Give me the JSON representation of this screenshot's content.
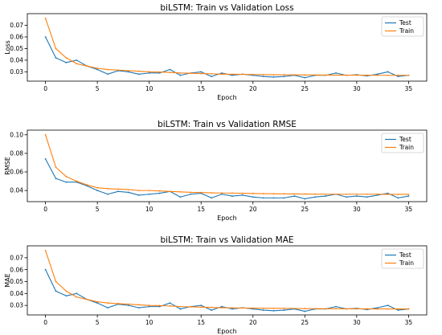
{
  "chart_data": [
    {
      "type": "line",
      "title": "biLSTM: Train vs Validation Loss",
      "xlabel": "Epoch",
      "ylabel": "Loss",
      "xlim": [
        -1.75,
        36.75
      ],
      "ylim": [
        0.022,
        0.08
      ],
      "xticks": [
        0,
        5,
        10,
        15,
        20,
        25,
        30,
        35
      ],
      "yticks": [
        0.03,
        0.04,
        0.05,
        0.06,
        0.07
      ],
      "ytick_labels": [
        "0.03",
        "0.04",
        "0.05",
        "0.06",
        "0.07"
      ],
      "legend": "top-right",
      "grid": false,
      "series": [
        {
          "name": "Test",
          "color": "#1f77b4",
          "values": [
            0.06,
            0.042,
            0.038,
            0.04,
            0.035,
            0.032,
            0.028,
            0.031,
            0.03,
            0.028,
            0.029,
            0.029,
            0.032,
            0.027,
            0.029,
            0.03,
            0.026,
            0.029,
            0.027,
            0.028,
            0.027,
            0.026,
            0.0255,
            0.026,
            0.027,
            0.025,
            0.027,
            0.027,
            0.029,
            0.027,
            0.0275,
            0.0265,
            0.028,
            0.03,
            0.026,
            0.027
          ]
        },
        {
          "name": "Train",
          "color": "#ff7f0e",
          "values": [
            0.076,
            0.05,
            0.042,
            0.037,
            0.035,
            0.033,
            0.032,
            0.0315,
            0.031,
            0.0305,
            0.03,
            0.0298,
            0.0295,
            0.029,
            0.0288,
            0.0285,
            0.0283,
            0.028,
            0.0279,
            0.0278,
            0.0277,
            0.0276,
            0.0275,
            0.0275,
            0.0274,
            0.0273,
            0.0273,
            0.0272,
            0.0272,
            0.0271,
            0.0271,
            0.0271,
            0.027,
            0.027,
            0.027,
            0.027
          ]
        }
      ]
    },
    {
      "type": "line",
      "title": "biLSTM: Train vs Validation RMSE",
      "xlabel": "Epoch",
      "ylabel": "RMSE",
      "xlim": [
        -1.75,
        36.75
      ],
      "ylim": [
        0.028,
        0.105
      ],
      "xticks": [
        0,
        5,
        10,
        15,
        20,
        25,
        30,
        35
      ],
      "yticks": [
        0.04,
        0.06,
        0.08,
        0.1
      ],
      "ytick_labels": [
        "0.04",
        "0.06",
        "0.08",
        "0.10"
      ],
      "legend": "top-right",
      "grid": false,
      "series": [
        {
          "name": "Test",
          "color": "#1f77b4",
          "values": [
            0.074,
            0.053,
            0.049,
            0.049,
            0.045,
            0.04,
            0.036,
            0.039,
            0.038,
            0.035,
            0.036,
            0.037,
            0.039,
            0.033,
            0.036,
            0.037,
            0.032,
            0.036,
            0.034,
            0.035,
            0.033,
            0.032,
            0.032,
            0.032,
            0.034,
            0.031,
            0.033,
            0.034,
            0.036,
            0.033,
            0.034,
            0.033,
            0.035,
            0.037,
            0.032,
            0.034
          ]
        },
        {
          "name": "Train",
          "color": "#ff7f0e",
          "values": [
            0.1,
            0.065,
            0.055,
            0.05,
            0.046,
            0.043,
            0.042,
            0.0415,
            0.041,
            0.04,
            0.04,
            0.0395,
            0.039,
            0.0385,
            0.038,
            0.0378,
            0.0375,
            0.0373,
            0.0372,
            0.037,
            0.0368,
            0.0366,
            0.0365,
            0.0364,
            0.0363,
            0.0362,
            0.0361,
            0.036,
            0.036,
            0.036,
            0.036,
            0.036,
            0.036,
            0.0358,
            0.0358,
            0.0358
          ]
        }
      ]
    },
    {
      "type": "line",
      "title": "biLSTM: Train vs Validation MAE",
      "xlabel": "Epoch",
      "ylabel": "MAE",
      "xlim": [
        -1.75,
        36.75
      ],
      "ylim": [
        0.022,
        0.08
      ],
      "xticks": [
        0,
        5,
        10,
        15,
        20,
        25,
        30,
        35
      ],
      "yticks": [
        0.03,
        0.04,
        0.05,
        0.06,
        0.07
      ],
      "ytick_labels": [
        "0.03",
        "0.04",
        "0.05",
        "0.06",
        "0.07"
      ],
      "legend": "top-right",
      "grid": false,
      "series": [
        {
          "name": "Test",
          "color": "#1f77b4",
          "values": [
            0.06,
            0.042,
            0.038,
            0.04,
            0.035,
            0.032,
            0.028,
            0.031,
            0.03,
            0.028,
            0.029,
            0.029,
            0.032,
            0.027,
            0.029,
            0.03,
            0.026,
            0.029,
            0.027,
            0.028,
            0.027,
            0.026,
            0.0255,
            0.026,
            0.027,
            0.025,
            0.027,
            0.027,
            0.029,
            0.027,
            0.0275,
            0.0265,
            0.028,
            0.03,
            0.026,
            0.027
          ]
        },
        {
          "name": "Train",
          "color": "#ff7f0e",
          "values": [
            0.076,
            0.05,
            0.042,
            0.037,
            0.035,
            0.033,
            0.032,
            0.0315,
            0.031,
            0.0305,
            0.03,
            0.0298,
            0.0295,
            0.029,
            0.0288,
            0.0285,
            0.0283,
            0.028,
            0.0279,
            0.0278,
            0.0277,
            0.0276,
            0.0275,
            0.0275,
            0.0274,
            0.0273,
            0.0273,
            0.0272,
            0.0272,
            0.0271,
            0.0271,
            0.0271,
            0.027,
            0.027,
            0.027,
            0.027
          ]
        }
      ]
    }
  ]
}
